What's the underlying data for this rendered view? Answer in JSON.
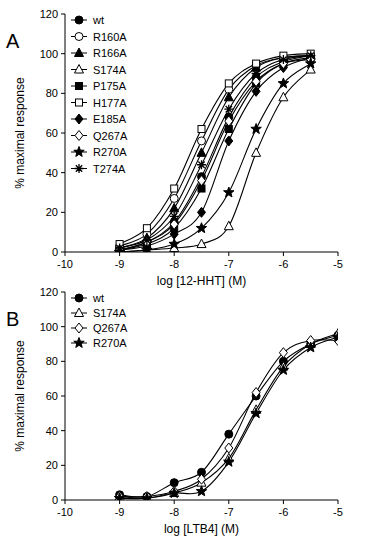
{
  "chart_data": [
    {
      "type": "line",
      "title": "A",
      "x_label": "log [12-HHT] (M)",
      "y_label": "% maximal response",
      "x": [
        -9,
        -8.5,
        -8,
        -7.5,
        -7,
        -6.5,
        -6,
        -5.5
      ],
      "xlim": [
        -10,
        -5
      ],
      "xticks": [
        -10,
        -9,
        -8,
        -7,
        -6,
        -5
      ],
      "ylim": [
        0,
        120
      ],
      "yticks": [
        0,
        20,
        40,
        60,
        80,
        100,
        120
      ],
      "legend": "top-left",
      "series": [
        {
          "name": "wt",
          "color": "#000000",
          "marker": "circle-filled",
          "values": [
            1,
            5,
            15,
            38,
            68,
            88,
            96,
            99
          ]
        },
        {
          "name": "R160A",
          "color": "#000000",
          "marker": "circle-open",
          "values": [
            3,
            9,
            27,
            56,
            82,
            94,
            98,
            99
          ]
        },
        {
          "name": "R166A",
          "color": "#000000",
          "marker": "triangle-filled",
          "values": [
            2,
            7,
            22,
            50,
            78,
            93,
            98,
            99
          ]
        },
        {
          "name": "S174A",
          "color": "#000000",
          "marker": "triangle-open",
          "values": [
            0,
            1,
            2,
            4,
            13,
            50,
            78,
            92
          ]
        },
        {
          "name": "P175A",
          "color": "#000000",
          "marker": "square-filled",
          "values": [
            1,
            4,
            12,
            32,
            62,
            85,
            95,
            98
          ]
        },
        {
          "name": "H177A",
          "color": "#000000",
          "marker": "square-open",
          "values": [
            4,
            12,
            32,
            62,
            85,
            95,
            99,
            100
          ]
        },
        {
          "name": "E185A",
          "color": "#000000",
          "marker": "diamond-filled",
          "values": [
            1,
            3,
            9,
            20,
            56,
            81,
            93,
            98
          ]
        },
        {
          "name": "Q267A",
          "color": "#000000",
          "marker": "diamond-open",
          "values": [
            1,
            5,
            14,
            36,
            66,
            86,
            95,
            97
          ]
        },
        {
          "name": "R270A",
          "color": "#000000",
          "marker": "star",
          "values": [
            0,
            1,
            4,
            12,
            30,
            62,
            85,
            95
          ]
        },
        {
          "name": "T274A",
          "color": "#000000",
          "marker": "asterisk",
          "values": [
            2,
            6,
            18,
            44,
            72,
            90,
            97,
            99
          ]
        }
      ]
    },
    {
      "type": "line",
      "title": "B",
      "x_label": "log [LTB4] (M)",
      "y_label": "% maximal response",
      "x": [
        -9,
        -8.5,
        -8,
        -7.5,
        -7,
        -6.5,
        -6,
        -5.5,
        -5
      ],
      "xlim": [
        -10,
        -5
      ],
      "xticks": [
        -10,
        -9,
        -8,
        -7,
        -6,
        -5
      ],
      "ylim": [
        0,
        120
      ],
      "yticks": [
        0,
        20,
        40,
        60,
        80,
        100,
        120
      ],
      "legend": "top-left",
      "series": [
        {
          "name": "wt",
          "color": "#000000",
          "marker": "circle-filled",
          "values": [
            3,
            2,
            10,
            16,
            38,
            60,
            80,
            90,
            95
          ]
        },
        {
          "name": "S174A",
          "color": "#000000",
          "marker": "triangle-open",
          "values": [
            2,
            1,
            4,
            10,
            24,
            52,
            77,
            90,
            96
          ]
        },
        {
          "name": "Q267A",
          "color": "#000000",
          "marker": "diamond-open",
          "values": [
            2,
            2,
            5,
            12,
            30,
            62,
            85,
            92,
            92
          ]
        },
        {
          "name": "R270A",
          "color": "#000000",
          "marker": "star",
          "values": [
            1,
            1,
            4,
            5,
            22,
            50,
            75,
            88,
            94
          ]
        }
      ]
    }
  ]
}
